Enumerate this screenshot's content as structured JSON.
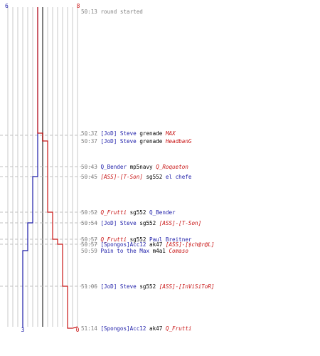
{
  "chart_data": {
    "type": "line",
    "title": "",
    "xlabel": "",
    "ylabel": "",
    "start_counts": {
      "left": "6",
      "right": "8"
    },
    "end_counts": {
      "left": "3",
      "right": "0"
    },
    "colors": {
      "left_team": "#1c1ca8",
      "right_team": "#c81414",
      "grid": "#c8c8c8",
      "center_line": "#808080",
      "dash": "#c0c0c0",
      "time": "#808080",
      "weapon": "#000000"
    },
    "series": [
      {
        "team": "left",
        "values": [
          6,
          6,
          6,
          6,
          5,
          5,
          4,
          4,
          4,
          3,
          3,
          3,
          3
        ]
      },
      {
        "team": "right",
        "values": [
          8,
          7,
          6,
          6,
          6,
          5,
          5,
          4,
          3,
          3,
          2,
          1,
          0
        ]
      }
    ],
    "events": [
      {
        "time": "50:13",
        "note": "round started"
      },
      {
        "time": "50:37",
        "killer": "[JoD] Steve",
        "killer_team": "left",
        "weapon": "grenade",
        "victim": "MAX",
        "victim_team": "right"
      },
      {
        "time": "50:37",
        "killer": "[JoD] Steve",
        "killer_team": "left",
        "weapon": "grenade",
        "victim": "HeadbanG",
        "victim_team": "right"
      },
      {
        "time": "50:43",
        "killer": "Q_Bender",
        "killer_team": "left",
        "weapon": "mp5navy",
        "victim": "Q_Roqueton",
        "victim_team": "right"
      },
      {
        "time": "50:45",
        "killer": "[ASS]-[T-Son]",
        "killer_team": "right",
        "weapon": "sg552",
        "victim": "el chefe",
        "victim_team": "left"
      },
      {
        "time": "50:52",
        "killer": "Q_Frutti",
        "killer_team": "right",
        "weapon": "sg552",
        "victim": "Q_Bender",
        "victim_team": "left"
      },
      {
        "time": "50:54",
        "killer": "[JoD] Steve",
        "killer_team": "left",
        "weapon": "sg552",
        "victim": "[ASS]-[T-Son]",
        "victim_team": "right"
      },
      {
        "time": "50:57",
        "killer": "Q_Frutti",
        "killer_team": "right",
        "weapon": "sg552",
        "victim": "Paul Breitner",
        "victim_team": "left"
      },
      {
        "time": "50:57",
        "killer": "[Spongos]Acc12",
        "killer_team": "left",
        "weapon": "ak47",
        "victim": "[ASS]-[$ch@r@L]",
        "victim_team": "right"
      },
      {
        "time": "50:59",
        "killer": "Pain to the Max",
        "killer_team": "left",
        "weapon": "m4a1",
        "victim": "Comaso",
        "victim_team": "right"
      },
      {
        "time": "51:06",
        "killer": "[JoD] Steve",
        "killer_team": "left",
        "weapon": "sg552",
        "victim": "[ASS]-[InViSiToR]",
        "victim_team": "right"
      },
      {
        "time": "51:14",
        "killer": "[Spongos]Acc12",
        "killer_team": "left",
        "weapon": "ak47",
        "victim": "Q_Frutti",
        "victim_team": "right"
      }
    ]
  }
}
